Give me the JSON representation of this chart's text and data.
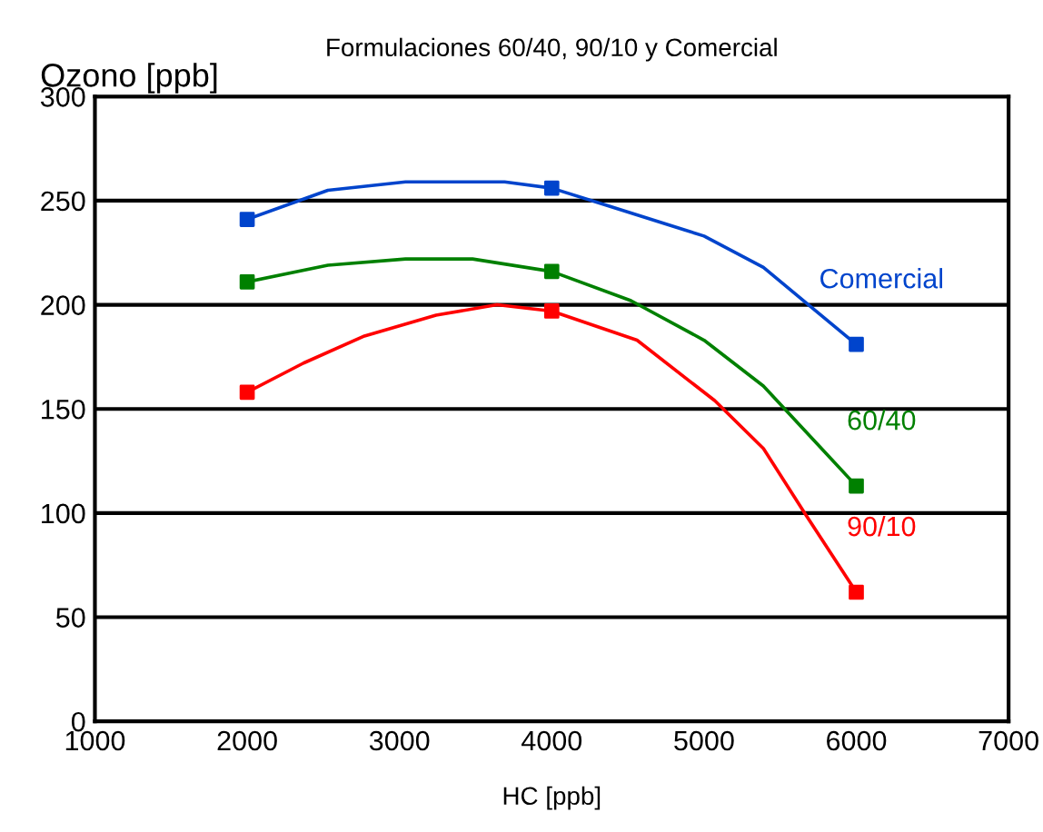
{
  "chart_data": {
    "type": "line",
    "title": "Formulaciones 60/40, 90/10 y Comercial",
    "xlabel": "HC [ppb]",
    "ylabel": "Ozono [ppb]",
    "series": [
      {
        "name": "Comercial",
        "marker": "none",
        "color": "#0044cc",
        "x": [
          2000,
          2530,
          3040,
          3690,
          4000,
          4350,
          5000,
          5390,
          5670,
          6000
        ],
        "values": [
          241,
          255,
          259,
          259,
          256,
          248,
          233,
          218,
          201,
          181
        ]
      },
      {
        "name": "60/40",
        "marker": "none",
        "color": "#008000",
        "x": [
          2000,
          2530,
          3040,
          3480,
          4000,
          4520,
          5000,
          5390,
          5670,
          6000
        ],
        "values": [
          211,
          219,
          222,
          222,
          216,
          202,
          183,
          161,
          139,
          113
        ]
      },
      {
        "name": "90/10",
        "marker": "none",
        "color": "#ff0000",
        "x": [
          2000,
          2370,
          2770,
          3240,
          3640,
          4000,
          4560,
          5070,
          5390,
          5670,
          6000
        ],
        "values": [
          158,
          172,
          185,
          195,
          200,
          197,
          183,
          154,
          131,
          99,
          62
        ]
      },
      {
        "type": "scatter",
        "color": "#0044cc",
        "x": [
          2000,
          4000,
          6000
        ],
        "values": [
          241,
          256,
          181
        ]
      },
      {
        "type": "scatter",
        "color": "#008000",
        "x": [
          2000,
          4000,
          6000
        ],
        "values": [
          211,
          216,
          113
        ]
      },
      {
        "type": "scatter",
        "color": "#ff0000",
        "x": [
          2000,
          4000,
          6000
        ],
        "values": [
          158,
          197,
          62
        ]
      }
    ],
    "xlim": [
      1000,
      7000
    ],
    "xticks": [
      1000,
      2000,
      3000,
      4000,
      5000,
      6000,
      7000
    ],
    "ylim": [
      0,
      300
    ],
    "yticks": [
      0,
      50,
      100,
      150,
      200,
      250,
      300
    ],
    "grid": "y",
    "marker": "square",
    "line_style": "solid",
    "legend": false
  }
}
